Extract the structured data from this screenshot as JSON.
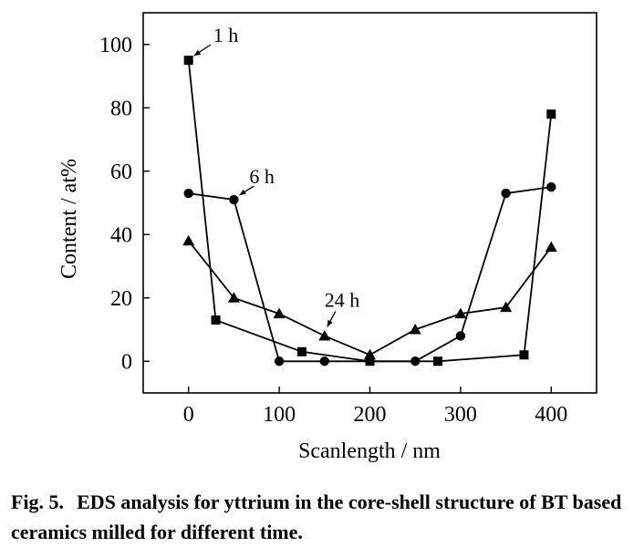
{
  "chart_data": {
    "type": "line",
    "title": "",
    "xlabel": "Scanlength / nm",
    "ylabel": "Content / at%",
    "xlim": [
      -50,
      450
    ],
    "ylim": [
      -10,
      110
    ],
    "x_ticks": [
      "0",
      "100",
      "200",
      "300",
      "400"
    ],
    "y_ticks": [
      "0",
      "20",
      "40",
      "60",
      "80",
      "100"
    ],
    "grid": false,
    "legend": "none",
    "series": [
      {
        "name": "1 h",
        "marker": "square",
        "points": [
          [
            0,
            95
          ],
          [
            30,
            13
          ],
          [
            125,
            3
          ],
          [
            200,
            0
          ],
          [
            275,
            0
          ],
          [
            370,
            2
          ],
          [
            400,
            78
          ]
        ]
      },
      {
        "name": "6 h",
        "marker": "circle",
        "points": [
          [
            0,
            53
          ],
          [
            50,
            51
          ],
          [
            100,
            0
          ],
          [
            150,
            0
          ],
          [
            250,
            0
          ],
          [
            300,
            8
          ],
          [
            350,
            53
          ],
          [
            400,
            55
          ]
        ]
      },
      {
        "name": "24 h",
        "marker": "triangle",
        "points": [
          [
            0,
            38
          ],
          [
            50,
            20
          ],
          [
            100,
            15
          ],
          [
            150,
            8
          ],
          [
            200,
            2
          ],
          [
            250,
            10
          ],
          [
            300,
            15
          ],
          [
            350,
            17
          ],
          [
            400,
            36
          ]
        ]
      }
    ],
    "annotations": [
      {
        "text": "1 h",
        "series": 0,
        "point": 0
      },
      {
        "text": "6 h",
        "series": 1,
        "point": 1
      },
      {
        "text": "24 h",
        "series": 2,
        "point": 3
      }
    ]
  },
  "caption": {
    "label": "Fig. 5.",
    "text": "EDS analysis for yttrium in the core-shell structure of BT based ceramics milled for different time."
  }
}
